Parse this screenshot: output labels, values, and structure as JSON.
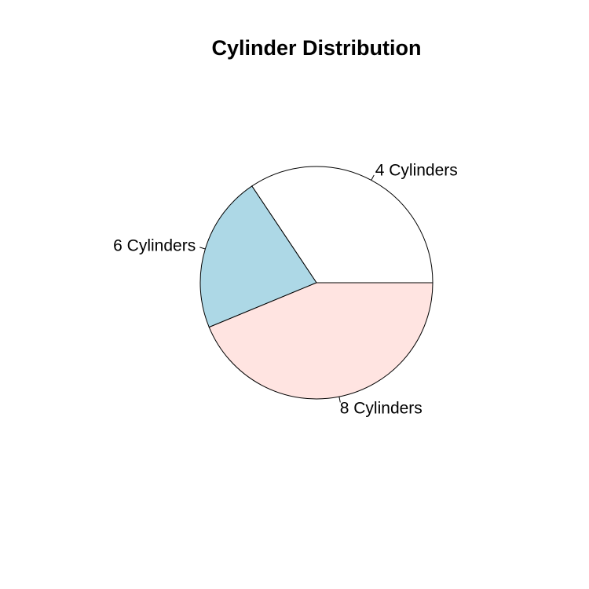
{
  "chart_data": {
    "type": "pie",
    "title": "Cylinder Distribution",
    "categories": [
      "4 Cylinders",
      "6 Cylinders",
      "8 Cylinders"
    ],
    "values": [
      11,
      7,
      14
    ],
    "colors": [
      "#FFFFFF",
      "#ADD8E6",
      "#FFE4E1"
    ],
    "start_angle_deg": 0,
    "direction": "counterclockwise",
    "legend": "none"
  }
}
